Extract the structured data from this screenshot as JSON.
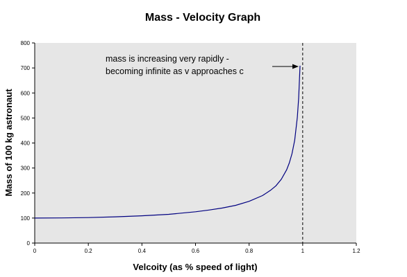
{
  "chart_data": {
    "type": "line",
    "title": "Mass - Velocity Graph",
    "xlabel": "Velcoity (as % speed of light)",
    "ylabel": "Mass of 100 kg astronaut",
    "xlim": [
      0,
      1.2
    ],
    "ylim": [
      0,
      800
    ],
    "xticks": [
      "0",
      "0.2",
      "0.4",
      "0.6",
      "0.8",
      "1",
      "1.2"
    ],
    "yticks": [
      "0",
      "100",
      "200",
      "300",
      "400",
      "500",
      "600",
      "700",
      "800"
    ],
    "grid": false,
    "legend": "none",
    "colors": {
      "plot_background": "#e6e6e6",
      "series_line": "#000080",
      "reference_line": "#000000"
    },
    "series": [
      {
        "x": [
          0,
          0.1,
          0.2,
          0.3,
          0.4,
          0.5,
          0.6,
          0.65,
          0.7,
          0.75,
          0.8,
          0.85,
          0.88,
          0.9,
          0.92,
          0.94,
          0.95,
          0.96,
          0.97,
          0.98,
          0.985,
          0.99
        ],
        "values": [
          100,
          100.5,
          102,
          105,
          109,
          115,
          125,
          132,
          140,
          151,
          167,
          190,
          211,
          229,
          255,
          293,
          320,
          357,
          411,
          503,
          579,
          709
        ]
      }
    ],
    "reference_line": {
      "x": 1,
      "style": "dashed"
    },
    "annotation": {
      "lines": [
        "mass is increasing very rapidly -",
        "becoming infinite as v approaches c"
      ],
      "arrow_to": {
        "x": 0.99,
        "y": 709
      }
    }
  }
}
